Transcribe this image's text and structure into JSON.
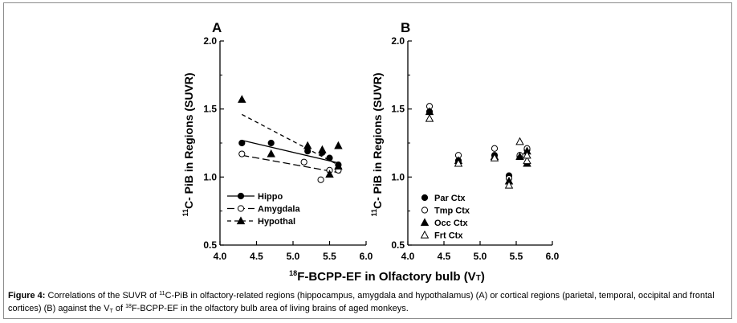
{
  "figure": {
    "caption": {
      "label": "Figure 4:",
      "text_a": " Correlations of the SUVR of ",
      "pib_sup": "11",
      "text_b": "C-PiB in olfactory-related regions (hippocampus, amygdala and hypothalamus) (A) or cortical regions (parietal, temporal, occipital and frontal cortices) (B) against the V",
      "vt_sub": "T",
      "text_c": " of ",
      "bcpp_sup": "18",
      "text_d": "F-BCPP-EF in the olfactory bulb area of living brains of aged monkeys."
    },
    "shared_xlabel": {
      "sup": "18",
      "text": "F-BCPP-EF in Olfactory bulb (V",
      "sub": "T",
      "close": ")"
    }
  },
  "chart_data": [
    {
      "panel": "A",
      "type": "scatter",
      "ylabel": {
        "sup": "11",
        "text": "C- PiB in Regions (SUVR)"
      },
      "xlim": [
        4.0,
        6.0
      ],
      "ylim": [
        0.5,
        2.0
      ],
      "x_ticks": [
        "4.0",
        "4.5",
        "5.0",
        "5.5",
        "6.0"
      ],
      "y_ticks": [
        "0.5",
        "1.0",
        "1.5",
        "2.0"
      ],
      "legend_position": "bottom-left",
      "series": [
        {
          "name": "Hippo",
          "marker": "filled-circle",
          "line": "solid",
          "points": [
            [
              4.3,
              1.25
            ],
            [
              4.7,
              1.25
            ],
            [
              5.2,
              1.19
            ],
            [
              5.4,
              1.18
            ],
            [
              5.5,
              1.14
            ],
            [
              5.62,
              1.09
            ]
          ],
          "fit": [
            [
              4.3,
              1.27
            ],
            [
              5.65,
              1.1
            ]
          ]
        },
        {
          "name": "Amygdala",
          "marker": "open-circle",
          "line": "long-dash",
          "points": [
            [
              4.3,
              1.17
            ],
            [
              5.15,
              1.11
            ],
            [
              5.38,
              0.98
            ],
            [
              5.5,
              1.05
            ],
            [
              5.62,
              1.05
            ]
          ],
          "fit": [
            [
              4.3,
              1.16
            ],
            [
              5.65,
              1.03
            ]
          ]
        },
        {
          "name": "Hypothal",
          "marker": "filled-triangle",
          "line": "short-dash",
          "points": [
            [
              4.3,
              1.57
            ],
            [
              4.7,
              1.17
            ],
            [
              5.2,
              1.23
            ],
            [
              5.4,
              1.2
            ],
            [
              5.5,
              1.02
            ],
            [
              5.62,
              1.23
            ],
            [
              5.62,
              1.08
            ]
          ],
          "fit": [
            [
              4.3,
              1.46
            ],
            [
              5.65,
              1.08
            ]
          ]
        }
      ]
    },
    {
      "panel": "B",
      "type": "scatter",
      "ylabel": {
        "sup": "11",
        "text": "C- PiB in Regions (SUVR)"
      },
      "xlim": [
        4.0,
        6.0
      ],
      "ylim": [
        0.5,
        2.0
      ],
      "x_ticks": [
        "4.0",
        "4.5",
        "5.0",
        "5.5",
        "6.0"
      ],
      "y_ticks": [
        "0.5",
        "1.0",
        "1.5",
        "2.0"
      ],
      "legend_position": "bottom-left",
      "series": [
        {
          "name": "Par Ctx",
          "marker": "filled-circle",
          "points": [
            [
              4.3,
              1.48
            ],
            [
              4.7,
              1.12
            ],
            [
              5.2,
              1.16
            ],
            [
              5.4,
              1.01
            ],
            [
              5.55,
              1.15
            ],
            [
              5.65,
              1.2
            ]
          ]
        },
        {
          "name": "Tmp Ctx",
          "marker": "open-circle",
          "points": [
            [
              4.3,
              1.52
            ],
            [
              4.7,
              1.16
            ],
            [
              5.2,
              1.21
            ],
            [
              5.4,
              0.99
            ],
            [
              5.55,
              1.16
            ],
            [
              5.65,
              1.21
            ]
          ]
        },
        {
          "name": "Occ Ctx",
          "marker": "filled-triangle",
          "points": [
            [
              4.3,
              1.48
            ],
            [
              4.7,
              1.12
            ],
            [
              5.2,
              1.15
            ],
            [
              5.4,
              0.97
            ],
            [
              5.55,
              1.15
            ],
            [
              5.65,
              1.1
            ],
            [
              5.65,
              1.19
            ]
          ]
        },
        {
          "name": "Frt Ctx",
          "marker": "open-triangle",
          "points": [
            [
              4.3,
              1.43
            ],
            [
              4.7,
              1.1
            ],
            [
              5.2,
              1.14
            ],
            [
              5.4,
              0.94
            ],
            [
              5.55,
              1.26
            ],
            [
              5.65,
              1.12
            ],
            [
              5.65,
              1.16
            ]
          ]
        }
      ]
    }
  ]
}
